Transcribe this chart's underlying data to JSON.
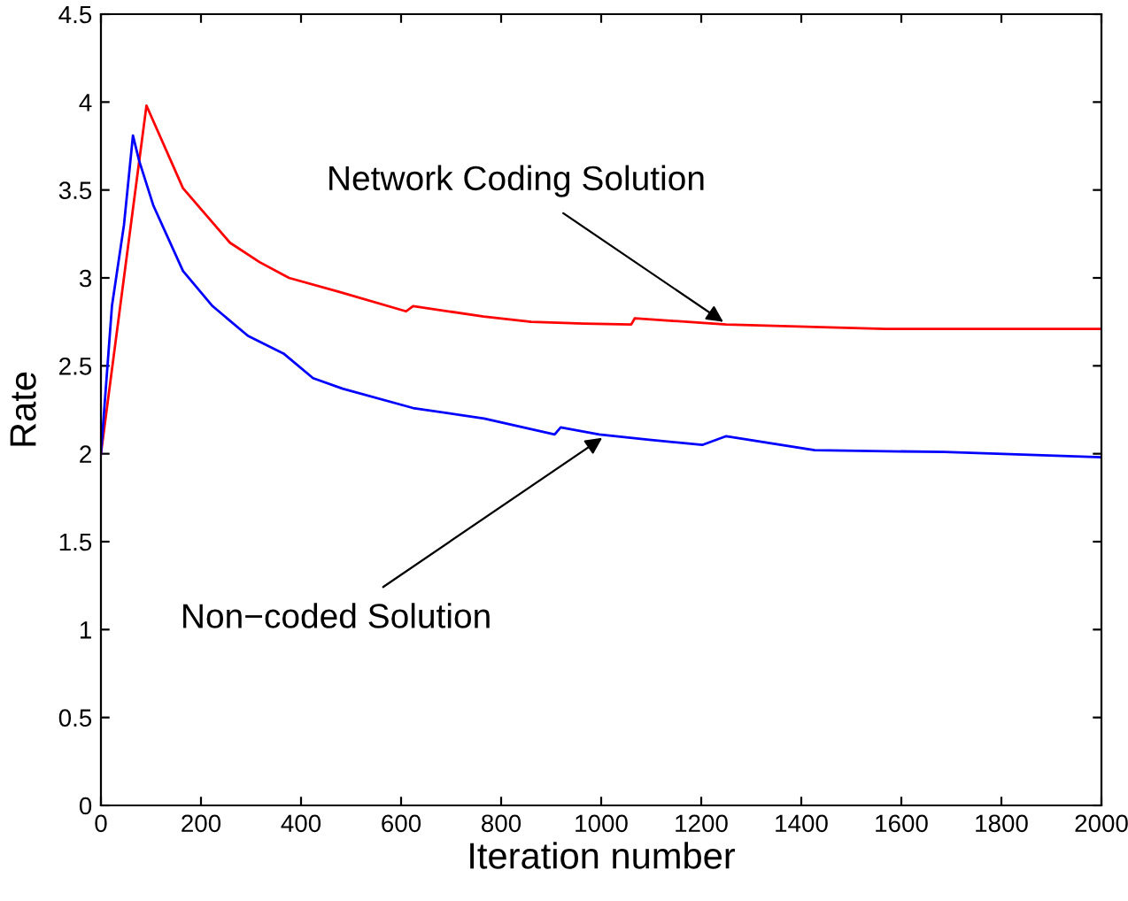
{
  "chart_data": {
    "type": "line",
    "xlabel": "Iteration number",
    "ylabel": "Rate",
    "xlim": [
      0,
      2000
    ],
    "ylim": [
      0,
      4.5
    ],
    "xticks": [
      0,
      200,
      400,
      600,
      800,
      1000,
      1200,
      1400,
      1600,
      1800,
      2000
    ],
    "yticks": [
      0,
      0.5,
      1,
      1.5,
      2,
      2.5,
      3,
      3.5,
      4,
      4.5
    ],
    "grid": false,
    "legend": false,
    "marker": "none",
    "line_style": "solid",
    "series": [
      {
        "color": "#ff0000",
        "x": [
          0,
          91,
          164,
          258,
          317,
          376,
          477,
          610,
          624,
          765,
          860,
          966,
          1060,
          1067,
          1250,
          1568,
          1999
        ],
        "values": [
          2,
          3.98,
          3.51,
          3.2,
          3.09,
          3.0,
          2.92,
          2.81,
          2.84,
          2.78,
          2.75,
          2.74,
          2.735,
          2.77,
          2.735,
          2.71,
          2.71
        ]
      },
      {
        "color": "#0000ff",
        "x": [
          0,
          22,
          46,
          64,
          76,
          105,
          164,
          223,
          294,
          365,
          424,
          483,
          624,
          766,
          907,
          919,
          996,
          1096,
          1202,
          1250,
          1427,
          1686,
          1999
        ],
        "values": [
          2,
          2.84,
          3.3,
          3.81,
          3.67,
          3.41,
          3.04,
          2.84,
          2.67,
          2.57,
          2.43,
          2.37,
          2.26,
          2.2,
          2.11,
          2.15,
          2.11,
          2.08,
          2.05,
          2.1,
          2.02,
          2.01,
          1.98
        ]
      }
    ],
    "annotations": [
      {
        "text": "Network Coding Solution",
        "x": 1244,
        "y": 2.75
      },
      {
        "text": "Non−coded Solution",
        "x": 1002,
        "y": 2.09
      }
    ]
  }
}
